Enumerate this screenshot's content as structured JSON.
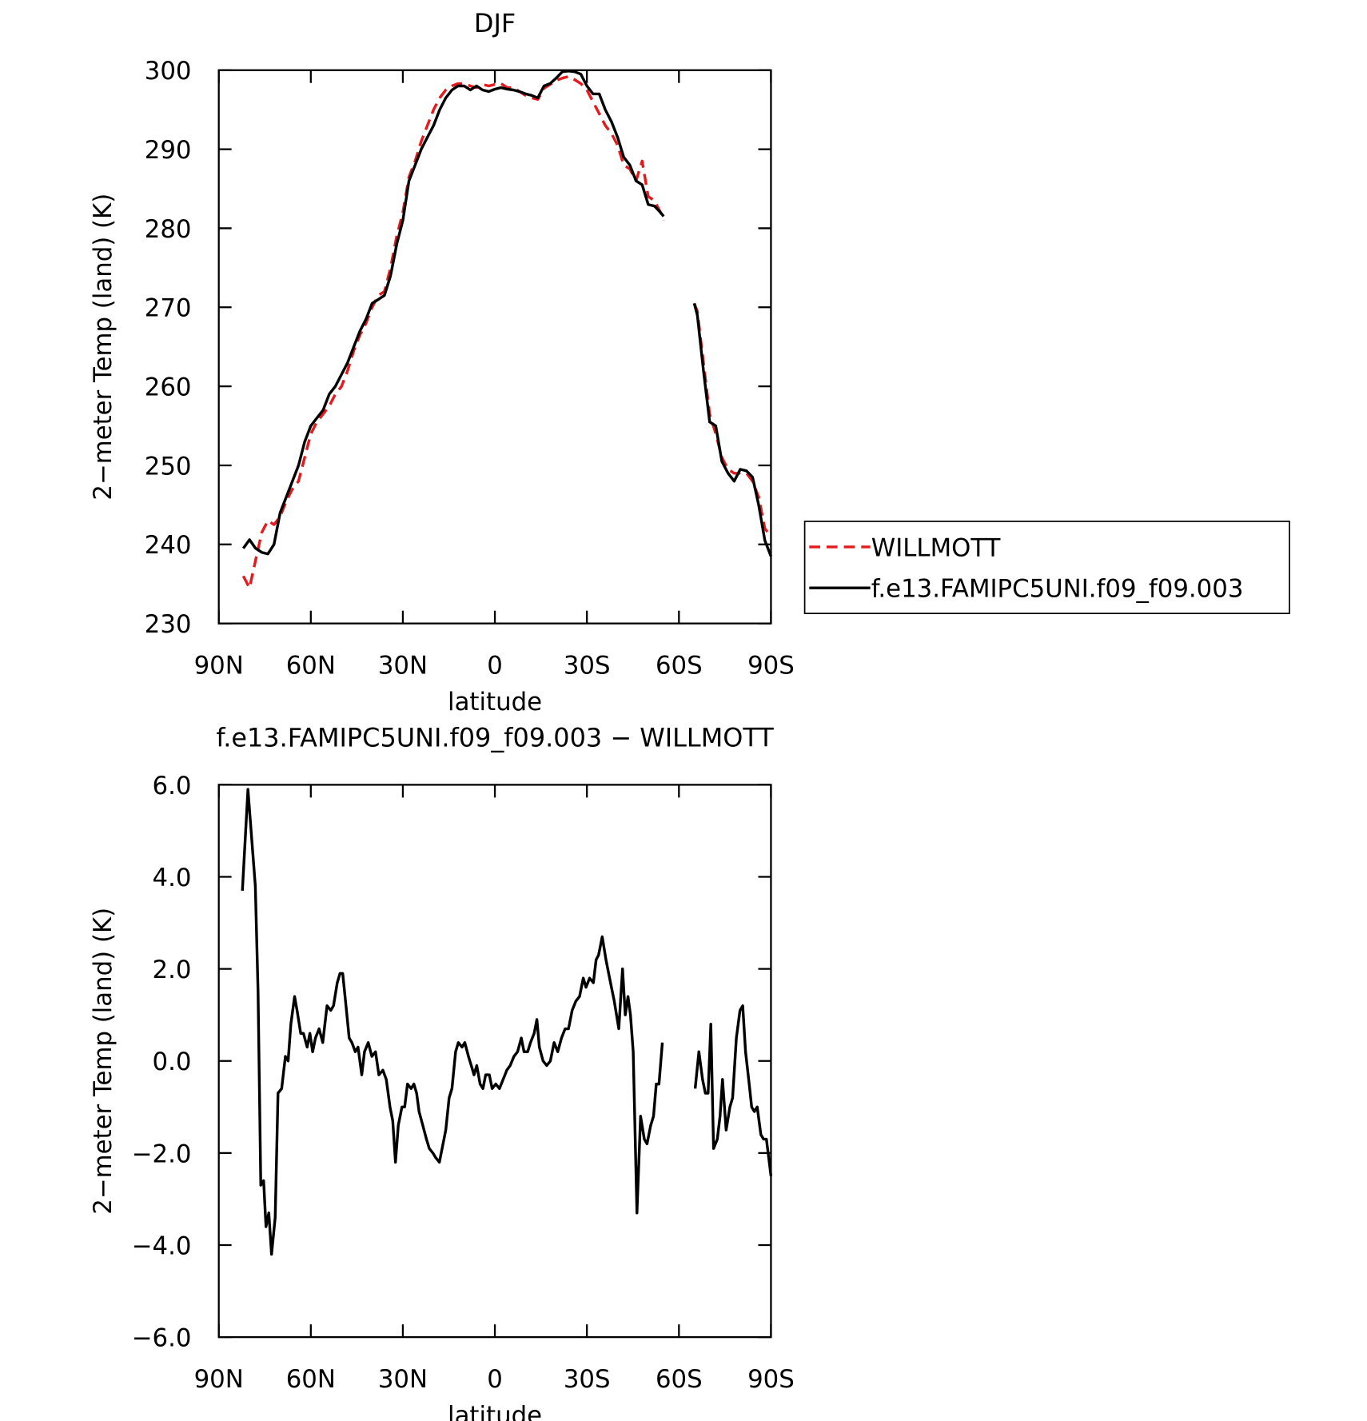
{
  "chart_data": [
    {
      "type": "line",
      "title": "DJF",
      "xlabel": "latitude",
      "ylabel": "2−meter Temp (land) (K)",
      "xlim": [
        90,
        -90
      ],
      "xticks": [
        {
          "value": 90,
          "label": "90N"
        },
        {
          "value": 60,
          "label": "60N"
        },
        {
          "value": 30,
          "label": "30N"
        },
        0,
        {
          "value": -30,
          "label": "30S"
        },
        {
          "value": -60,
          "label": "60S"
        },
        {
          "value": -90,
          "label": "90S"
        }
      ],
      "ylim": [
        230,
        300
      ],
      "yticks": [
        230,
        240,
        250,
        260,
        270,
        280,
        290,
        300
      ],
      "legend": "outside right",
      "x": [
        82,
        80,
        78,
        76,
        74,
        72,
        70,
        68,
        66,
        64,
        62,
        60,
        58,
        56,
        54,
        52,
        50,
        48,
        46,
        44,
        42,
        40,
        38,
        36,
        34,
        32,
        30,
        28,
        26,
        24,
        22,
        20,
        18,
        16,
        14,
        12,
        10,
        8,
        6,
        4,
        2,
        0,
        -2,
        -4,
        -6,
        -8,
        -10,
        -12,
        -14,
        -16,
        -18,
        -20,
        -22,
        -24,
        -26,
        -28,
        -30,
        -32,
        -34,
        -36,
        -38,
        -40,
        -42,
        -44,
        -46,
        -48,
        -50,
        -52,
        -54,
        -55,
        -60,
        -65,
        -66,
        -68,
        -70,
        -72,
        -74,
        -76,
        -78,
        -80,
        -82,
        -84,
        -86,
        -88,
        -90
      ],
      "series": [
        {
          "name": "WILLMOTT",
          "color": "#e41a1c",
          "dash": true,
          "values": [
            236,
            234.5,
            238,
            241.5,
            243,
            242.5,
            243.5,
            245.5,
            247,
            248,
            251,
            254,
            255.5,
            256.5,
            257.5,
            259,
            260,
            262,
            264.5,
            266.5,
            268,
            270,
            271.5,
            272,
            275,
            279,
            282,
            286.5,
            288.5,
            291,
            293,
            295,
            296.5,
            297.5,
            298,
            298.3,
            298.3,
            298,
            297.8,
            298.2,
            298,
            298.2,
            298.3,
            297.8,
            297.8,
            297.3,
            296.8,
            296.5,
            296.3,
            297.7,
            298.2,
            298.7,
            299,
            299.2,
            298.8,
            298.3,
            297.5,
            296,
            294.5,
            293,
            292,
            290.5,
            288,
            287.5,
            286,
            288.5,
            284,
            283.5,
            282,
            281,
            null,
            270.5,
            269.5,
            263,
            256.5,
            254,
            251,
            249.5,
            249,
            249,
            249,
            248,
            246,
            242,
            241
          ]
        },
        {
          "name": "f.e13.FAMIPC5UNI.f09_f09.003",
          "color": "#000000",
          "dash": false,
          "values": [
            239.5,
            240.6,
            239.5,
            239,
            238.8,
            240,
            244,
            246,
            248,
            250,
            253,
            255,
            256,
            257,
            259,
            260,
            261.5,
            263,
            265,
            267,
            268.5,
            270.5,
            271,
            271.5,
            274,
            278,
            281,
            286,
            288,
            290,
            291.5,
            293,
            295,
            296.5,
            297.5,
            298,
            298,
            297.5,
            298,
            297.5,
            297.3,
            297.6,
            297.8,
            297.6,
            297.5,
            297.3,
            297,
            296.8,
            296.5,
            298,
            298.3,
            299,
            299.8,
            299.9,
            299.8,
            299.5,
            298,
            297,
            297,
            295,
            293.5,
            291.5,
            289,
            288,
            286,
            285.5,
            283,
            282.8,
            282,
            281.5,
            null,
            270.5,
            269,
            262,
            255.5,
            255,
            250.5,
            249,
            248,
            249.5,
            249.3,
            248.5,
            245,
            240.5,
            238.5
          ]
        }
      ]
    },
    {
      "type": "line",
      "title": "f.e13.FAMIPC5UNI.f09_f09.003 − WILLMOTT",
      "xlabel": "latitude",
      "ylabel": "2−meter Temp (land) (K)",
      "xlim": [
        90,
        -90
      ],
      "xticks": [
        {
          "value": 90,
          "label": "90N"
        },
        {
          "value": 60,
          "label": "60N"
        },
        {
          "value": 30,
          "label": "30N"
        },
        0,
        {
          "value": -30,
          "label": "30S"
        },
        {
          "value": -60,
          "label": "60S"
        },
        {
          "value": -90,
          "label": "90S"
        }
      ],
      "ylim": [
        -6,
        6
      ],
      "yticks": [
        {
          "value": -6,
          "label": "−6.0"
        },
        {
          "value": -4,
          "label": "−4.0"
        },
        {
          "value": -2,
          "label": "−2.0"
        },
        {
          "value": 0,
          "label": "0.0"
        },
        {
          "value": 2,
          "label": "2.0"
        },
        {
          "value": 4,
          "label": "4.0"
        },
        {
          "value": 6,
          "label": "6.0"
        }
      ],
      "x": [
        82.3,
        80.5,
        79.0,
        78.1,
        77.2,
        76.3,
        75.4,
        74.6,
        73.7,
        72.8,
        71.6,
        70.7,
        69.5,
        68.3,
        67.4,
        66.5,
        65.3,
        64.5,
        63.3,
        62.4,
        61.2,
        60.3,
        59.4,
        58.5,
        57.3,
        56.1,
        54.7,
        53.5,
        52.6,
        51.4,
        50.5,
        49.6,
        48.4,
        47.5,
        46.6,
        45.5,
        44.6,
        43.4,
        42.5,
        41.3,
        40.1,
        38.9,
        37.8,
        36.5,
        35.4,
        34.2,
        33.3,
        32.4,
        31.5,
        30.3,
        29.4,
        28.5,
        27.3,
        26.4,
        25.5,
        24.7,
        23.5,
        22.3,
        21.4,
        20.2,
        19.3,
        18.1,
        17.2,
        16.0,
        14.9,
        14.0,
        12.8,
        11.9,
        10.7,
        9.8,
        8.6,
        7.7,
        6.8,
        5.9,
        4.8,
        3.9,
        3.0,
        1.8,
        0.9,
        -0.3,
        -1.5,
        -2.7,
        -3.9,
        -5.0,
        -6.2,
        -7.4,
        -8.6,
        -9.5,
        -10.7,
        -11.6,
        -12.8,
        -13.7,
        -14.5,
        -15.7,
        -16.9,
        -18.1,
        -19.3,
        -20.5,
        -21.7,
        -22.9,
        -24.0,
        -25.2,
        -26.4,
        -27.6,
        -28.8,
        -29.7,
        -30.9,
        -32.1,
        -33.0,
        -33.8,
        -35.0,
        -36.2,
        -37.4,
        -38.9,
        -40.4,
        -41.6,
        -42.5,
        -43.4,
        -44.2,
        -45.1,
        -46.3,
        -47.5,
        -48.7,
        -49.6,
        -50.8,
        -51.7,
        -52.6,
        -53.5,
        -54.6,
        -60,
        -65.3,
        -66.5,
        -67.7,
        -68.6,
        -69.5,
        -70.4,
        -71.3,
        -72.5,
        -73.4,
        -74.2,
        -75.4,
        -76.6,
        -77.5,
        -78.7,
        -79.9,
        -80.8,
        -81.7,
        -82.9,
        -83.7,
        -84.6,
        -85.5,
        -86.7,
        -87.6,
        -88.5,
        -90.0
      ],
      "series": [
        {
          "color": "#000000",
          "dash": false,
          "values": [
            3.7,
            5.9,
            4.6,
            3.8,
            1.5,
            -2.7,
            -2.6,
            -3.6,
            -3.3,
            -4.2,
            -3.4,
            -0.7,
            -0.6,
            0.1,
            0.0,
            0.8,
            1.4,
            1.1,
            0.6,
            0.6,
            0.3,
            0.6,
            0.2,
            0.5,
            0.7,
            0.4,
            1.2,
            1.1,
            1.2,
            1.7,
            1.9,
            1.9,
            1.1,
            0.5,
            0.4,
            0.2,
            0.3,
            -0.3,
            0.2,
            0.4,
            0.1,
            0.2,
            -0.3,
            -0.2,
            -0.4,
            -1.0,
            -1.3,
            -2.2,
            -1.4,
            -1.0,
            -1.0,
            -0.5,
            -0.6,
            -0.5,
            -0.7,
            -1.1,
            -1.4,
            -1.7,
            -1.9,
            -2.0,
            -2.1,
            -2.2,
            -1.9,
            -1.5,
            -0.8,
            -0.6,
            0.2,
            0.4,
            0.3,
            0.4,
            0.1,
            -0.1,
            -0.3,
            -0.1,
            -0.5,
            -0.6,
            -0.3,
            -0.3,
            -0.6,
            -0.5,
            -0.6,
            -0.4,
            -0.2,
            -0.1,
            0.1,
            0.2,
            0.5,
            0.2,
            0.2,
            0.4,
            0.6,
            0.9,
            0.3,
            0.0,
            -0.1,
            0.0,
            0.4,
            0.2,
            0.5,
            0.7,
            0.7,
            1.1,
            1.3,
            1.4,
            1.8,
            1.6,
            1.8,
            1.7,
            2.2,
            2.3,
            2.7,
            2.2,
            1.8,
            1.3,
            0.7,
            2.0,
            1.0,
            1.4,
            1.0,
            0.2,
            -3.3,
            -1.2,
            -1.7,
            -1.8,
            -1.4,
            -1.2,
            -0.5,
            -0.5,
            0.4,
            null,
            -0.6,
            0.2,
            -0.4,
            -0.7,
            -0.7,
            0.8,
            -1.9,
            -1.7,
            -1.2,
            -0.4,
            -1.5,
            -1.0,
            -0.8,
            0.5,
            1.1,
            1.2,
            0.2,
            -0.5,
            -1.0,
            -1.1,
            -1.0,
            -1.6,
            -1.7,
            -1.7,
            -2.5
          ]
        }
      ]
    }
  ]
}
